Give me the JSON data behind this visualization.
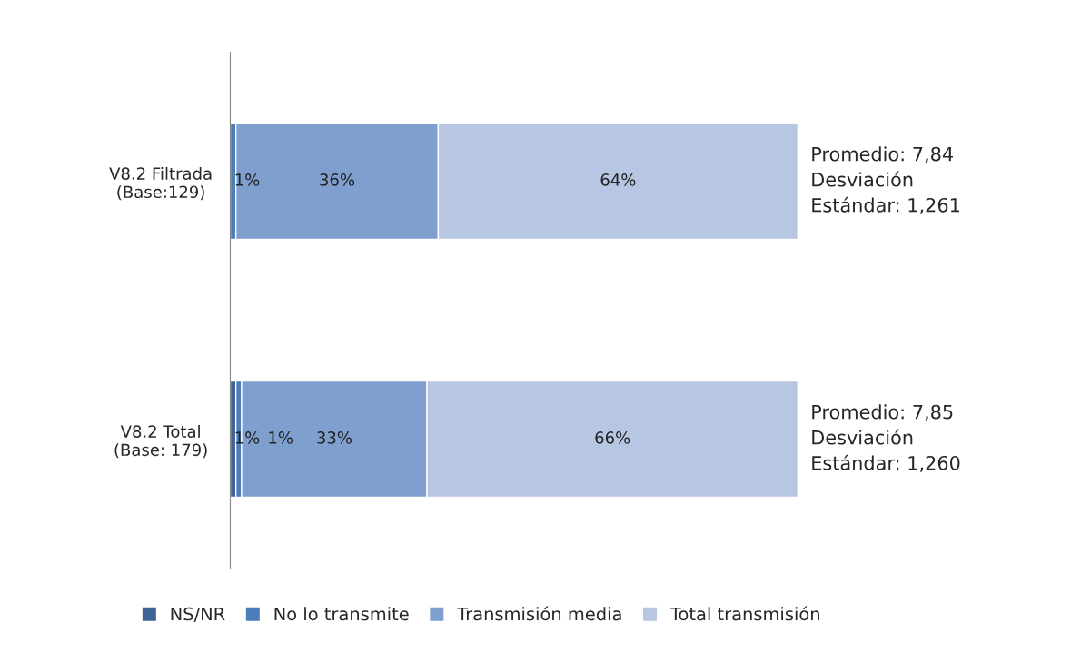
{
  "chart_data": {
    "type": "bar",
    "orientation": "horizontal",
    "stacked": true,
    "categories": [
      "V8.2 Filtrada\n(Base:129)",
      "V8.2 Total\n(Base: 179)"
    ],
    "series": [
      {
        "name": "NS/NR",
        "color": "#3f6396",
        "values": [
          0,
          1
        ],
        "value_labels": [
          null,
          "1%"
        ]
      },
      {
        "name": "No lo transmite",
        "color": "#4a7ebb",
        "values": [
          1,
          1
        ],
        "value_labels": [
          "1%",
          "1%"
        ]
      },
      {
        "name": "Transmisión media",
        "color": "#7f9fcf",
        "values": [
          36,
          33
        ],
        "value_labels": [
          "36%",
          "33%"
        ]
      },
      {
        "name": "Total transmisión",
        "color": "#b7c6e2",
        "values": [
          64,
          66
        ],
        "value_labels": [
          "64%",
          "66%"
        ]
      }
    ],
    "xlim": [
      0,
      101
    ],
    "tick_labels": "y",
    "grid": false,
    "legend": "bottom",
    "annotations": [
      "Promedio: 7,84\nDesviación\nEstándar: 1,261",
      "Promedio: 7,85\nDesviación\nEstándar: 1,260"
    ]
  }
}
